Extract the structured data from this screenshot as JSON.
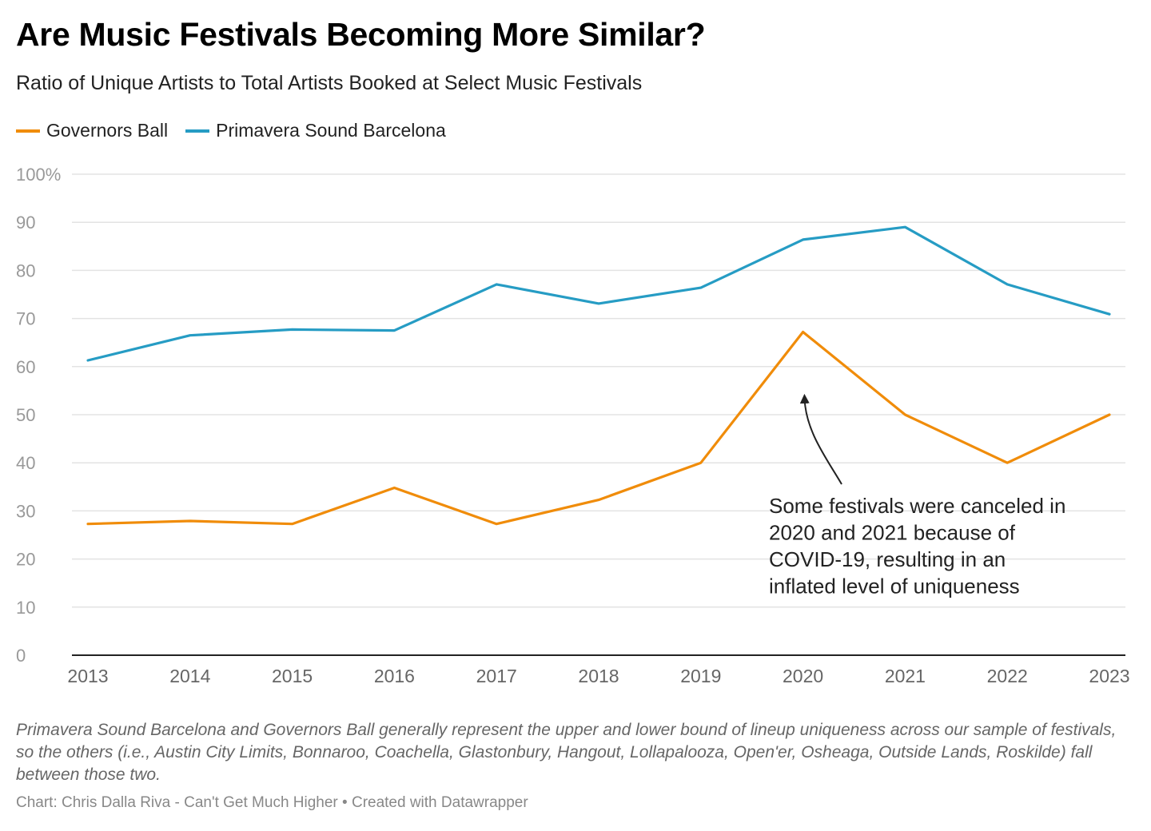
{
  "chart_data": {
    "type": "line",
    "title": "Are Music Festivals Becoming More Similar?",
    "subtitle": "Ratio of Unique Artists to Total Artists Booked at Select Music Festivals",
    "x": [
      "2013",
      "2014",
      "2015",
      "2016",
      "2017",
      "2018",
      "2019",
      "2020",
      "2021",
      "2022",
      "2023"
    ],
    "series": [
      {
        "name": "Governors Ball",
        "color": "#f08c0a",
        "values": [
          27.3,
          27.9,
          27.3,
          34.8,
          27.3,
          32.3,
          40.0,
          67.2,
          50.0,
          40.0,
          50.0
        ]
      },
      {
        "name": "Primavera Sound Barcelona",
        "color": "#269cc4",
        "values": [
          61.3,
          66.5,
          67.7,
          67.5,
          77.1,
          73.1,
          76.4,
          86.4,
          89.0,
          77.1,
          70.9
        ]
      }
    ],
    "ylim": [
      0,
      100
    ],
    "yticks": [
      0,
      10,
      20,
      30,
      40,
      50,
      60,
      70,
      80,
      90,
      100
    ],
    "ytick_labels": [
      "0",
      "10",
      "20",
      "30",
      "40",
      "50",
      "60",
      "70",
      "80",
      "90",
      "100%"
    ],
    "xlabel": "",
    "ylabel": "",
    "grid": true,
    "legend_position": "top-left",
    "annotation": {
      "lines": [
        "Some festivals were canceled in",
        "2020 and 2021 because of",
        "COVID-19, resulting in an",
        "inflated level of uniqueness"
      ],
      "points_to": {
        "x": "2020",
        "y": 55
      }
    },
    "notes": "Primavera Sound Barcelona and Governors Ball generally represent the upper and lower bound of lineup uniqueness across our sample of festivals, so the others (i.e., Austin City Limits, Bonnaroo, Coachella, Glastonbury, Hangout, Lollapalooza, Open'er, Osheaga, Outside Lands, Roskilde) fall between those two.",
    "source": "Chart: Chris Dalla Riva - Can't Get Much Higher • Created with Datawrapper"
  }
}
